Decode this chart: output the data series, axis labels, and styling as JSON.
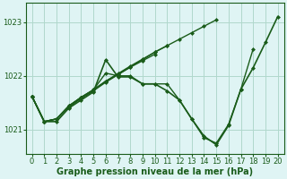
{
  "background_color": "#dff4f4",
  "grid_color": "#b0d8cc",
  "line_color": "#1a5c1a",
  "marker_color": "#1a5c1a",
  "xlabel": "Graphe pression niveau de la mer (hPa)",
  "ylim": [
    1020.55,
    1023.35
  ],
  "xlim": [
    -0.5,
    20.5
  ],
  "yticks": [
    1021,
    1022,
    1023
  ],
  "xticks": [
    0,
    1,
    2,
    3,
    4,
    5,
    6,
    7,
    8,
    9,
    10,
    11,
    12,
    13,
    14,
    15,
    16,
    17,
    18,
    19,
    20
  ],
  "series": [
    {
      "x": [
        0,
        1,
        2,
        3,
        4,
        5,
        6,
        7,
        8,
        9,
        10,
        11,
        12,
        13,
        14,
        15,
        16,
        17,
        18,
        19,
        20
      ],
      "y": [
        1021.62,
        1021.15,
        1021.15,
        1021.4,
        1021.55,
        1021.7,
        1022.3,
        1021.98,
        1021.98,
        1021.85,
        1021.85,
        1021.72,
        1021.55,
        1021.2,
        1020.88,
        1020.72,
        1021.08,
        1021.75,
        1022.15,
        1022.62,
        1023.1
      ],
      "lw": 1.2
    },
    {
      "x": [
        0,
        1,
        2,
        3,
        4,
        5,
        6,
        7,
        8,
        9,
        10,
        11,
        12,
        13,
        14,
        15,
        16,
        17,
        18,
        19,
        20
      ],
      "y": [
        1021.62,
        1021.15,
        1021.2,
        1021.42,
        1021.58,
        1021.72,
        1021.88,
        1022.02,
        1022.16,
        1022.3,
        1022.44,
        1022.56,
        1022.68,
        1022.8,
        1022.92,
        1023.04,
        null,
        null,
        null,
        null,
        null
      ],
      "lw": 1.0
    },
    {
      "x": [
        0,
        1,
        2,
        3,
        4,
        5,
        6,
        7,
        8,
        9,
        10,
        11,
        12,
        13,
        14,
        15,
        16,
        17,
        18,
        19,
        20
      ],
      "y": [
        1021.62,
        1021.15,
        1021.2,
        1021.44,
        1021.6,
        1021.74,
        1021.9,
        1022.04,
        1022.18,
        1022.31,
        1022.44,
        1022.56,
        null,
        null,
        null,
        null,
        null,
        null,
        null,
        null,
        null
      ],
      "lw": 1.0
    },
    {
      "x": [
        0,
        1,
        2,
        3,
        4,
        5,
        6,
        7,
        8,
        9,
        10,
        11,
        12,
        13,
        14,
        15,
        16,
        17,
        18,
        19,
        20
      ],
      "y": [
        1021.62,
        1021.15,
        1021.2,
        1021.44,
        1021.6,
        1021.74,
        1021.9,
        1022.03,
        1022.16,
        1022.28,
        1022.4,
        null,
        null,
        null,
        null,
        null,
        null,
        null,
        null,
        null,
        null
      ],
      "lw": 1.0
    },
    {
      "x": [
        0,
        1,
        2,
        3,
        4,
        5,
        6,
        7,
        8,
        9,
        10,
        11,
        12,
        13,
        14,
        15,
        16,
        17,
        18,
        19,
        20
      ],
      "y": [
        1021.62,
        1021.15,
        1021.2,
        1021.44,
        1021.6,
        1021.74,
        1022.05,
        1022.0,
        1022.0,
        1021.85,
        1021.85,
        1021.85,
        1021.55,
        1021.2,
        1020.85,
        1020.75,
        1021.1,
        1021.75,
        1022.5,
        null,
        null
      ],
      "lw": 1.0
    }
  ],
  "tick_fontsize": 6.0,
  "xlabel_fontsize": 7.0
}
